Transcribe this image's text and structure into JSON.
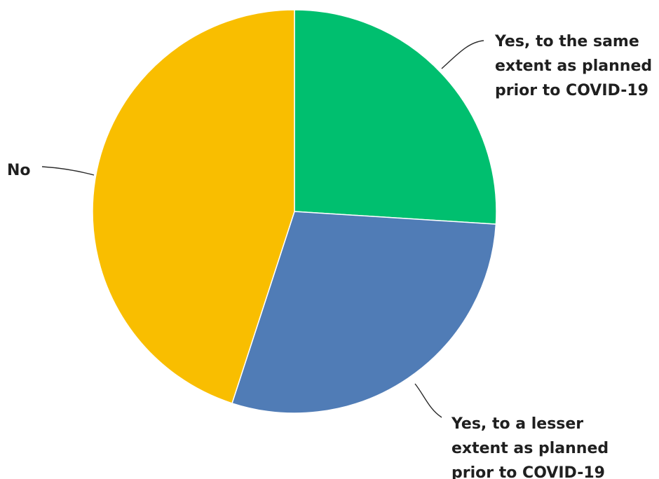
{
  "chart_data": {
    "type": "pie",
    "start_angle_deg": 0,
    "direction": "clockwise",
    "legend": "none",
    "slices": [
      {
        "label_lines": [
          "Yes, to the same",
          "extent as planned",
          "prior to COVID-19"
        ],
        "value": 26,
        "color": "#00BF6F"
      },
      {
        "label_lines": [
          "Yes, to a lesser",
          "extent as planned",
          "prior to COVID-19"
        ],
        "value": 29,
        "color": "#507CB6"
      },
      {
        "label_lines": [
          "No"
        ],
        "value": 45,
        "color": "#F9BE00"
      }
    ]
  }
}
